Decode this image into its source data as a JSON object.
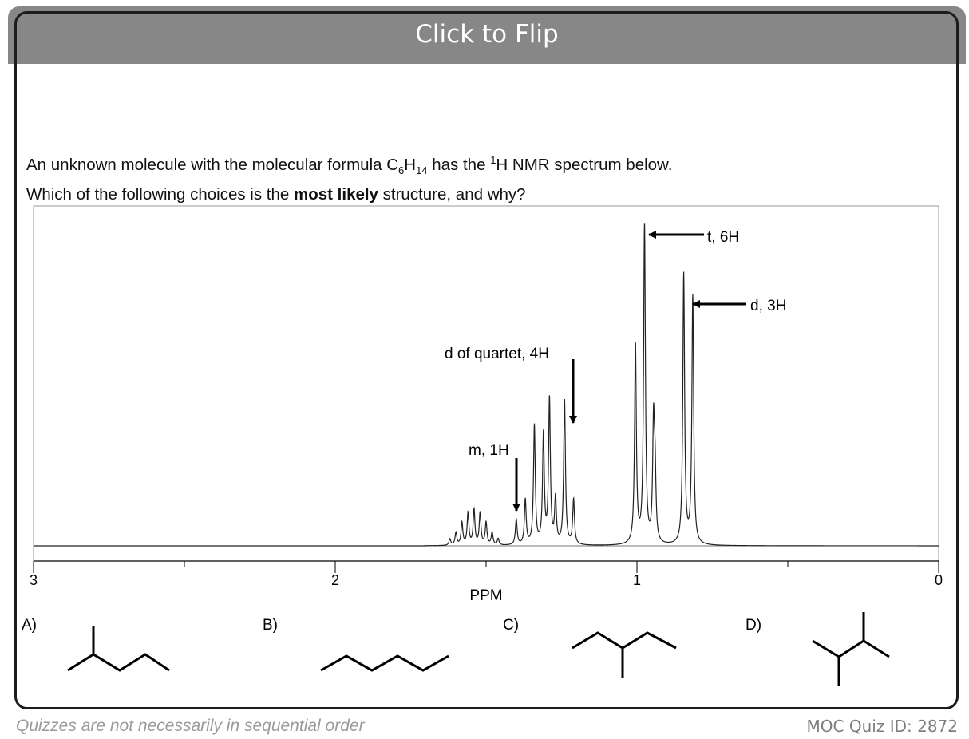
{
  "header": {
    "flip_label": "Click to Flip"
  },
  "question": {
    "line1_prefix": "An unknown molecule with the molecular formula C",
    "formula_sub1": "6",
    "formula_mid": "H",
    "formula_sub2": "14",
    "line1_mid": " has the ",
    "nucleus_sup": "1",
    "line1_suffix": "H NMR spectrum below.",
    "line2_prefix": "Which of the following choices is the ",
    "line2_bold": "most likely",
    "line2_suffix": " structure, and why?"
  },
  "chart_data": {
    "type": "line",
    "xlabel": "PPM",
    "xlim": [
      3,
      0
    ],
    "x_tick_labels": [
      "3",
      "2",
      "1",
      "0"
    ],
    "annotations": [
      {
        "text": "t, 6H",
        "x": 0.98
      },
      {
        "text": "d, 3H",
        "x": 0.83
      },
      {
        "text": "d of quartet, 4H",
        "x": 1.29
      },
      {
        "text": "m, 1H",
        "x": 1.53
      }
    ],
    "peaks": [
      {
        "x": 1.62,
        "h": 0.02
      },
      {
        "x": 1.6,
        "h": 0.04
      },
      {
        "x": 1.58,
        "h": 0.07
      },
      {
        "x": 1.56,
        "h": 0.1
      },
      {
        "x": 1.54,
        "h": 0.11
      },
      {
        "x": 1.52,
        "h": 0.1
      },
      {
        "x": 1.5,
        "h": 0.07
      },
      {
        "x": 1.48,
        "h": 0.04
      },
      {
        "x": 1.46,
        "h": 0.02
      },
      {
        "x": 1.4,
        "h": 0.08
      },
      {
        "x": 1.37,
        "h": 0.14
      },
      {
        "x": 1.34,
        "h": 0.37
      },
      {
        "x": 1.31,
        "h": 0.34
      },
      {
        "x": 1.29,
        "h": 0.45
      },
      {
        "x": 1.27,
        "h": 0.14
      },
      {
        "x": 1.24,
        "h": 0.45
      },
      {
        "x": 1.21,
        "h": 0.14
      },
      {
        "x": 1.005,
        "h": 0.62
      },
      {
        "x": 0.975,
        "h": 1.0
      },
      {
        "x": 0.945,
        "h": 0.36
      },
      {
        "x": 0.94,
        "h": 0.2
      },
      {
        "x": 0.845,
        "h": 0.84
      },
      {
        "x": 0.815,
        "h": 0.77
      }
    ]
  },
  "choices": [
    {
      "label": "A)"
    },
    {
      "label": "B)"
    },
    {
      "label": "C)"
    },
    {
      "label": "D)"
    }
  ],
  "footer": {
    "note": "Quizzes are not necessarily in sequential order",
    "quiz_id": "MOC Quiz ID: 2872"
  }
}
